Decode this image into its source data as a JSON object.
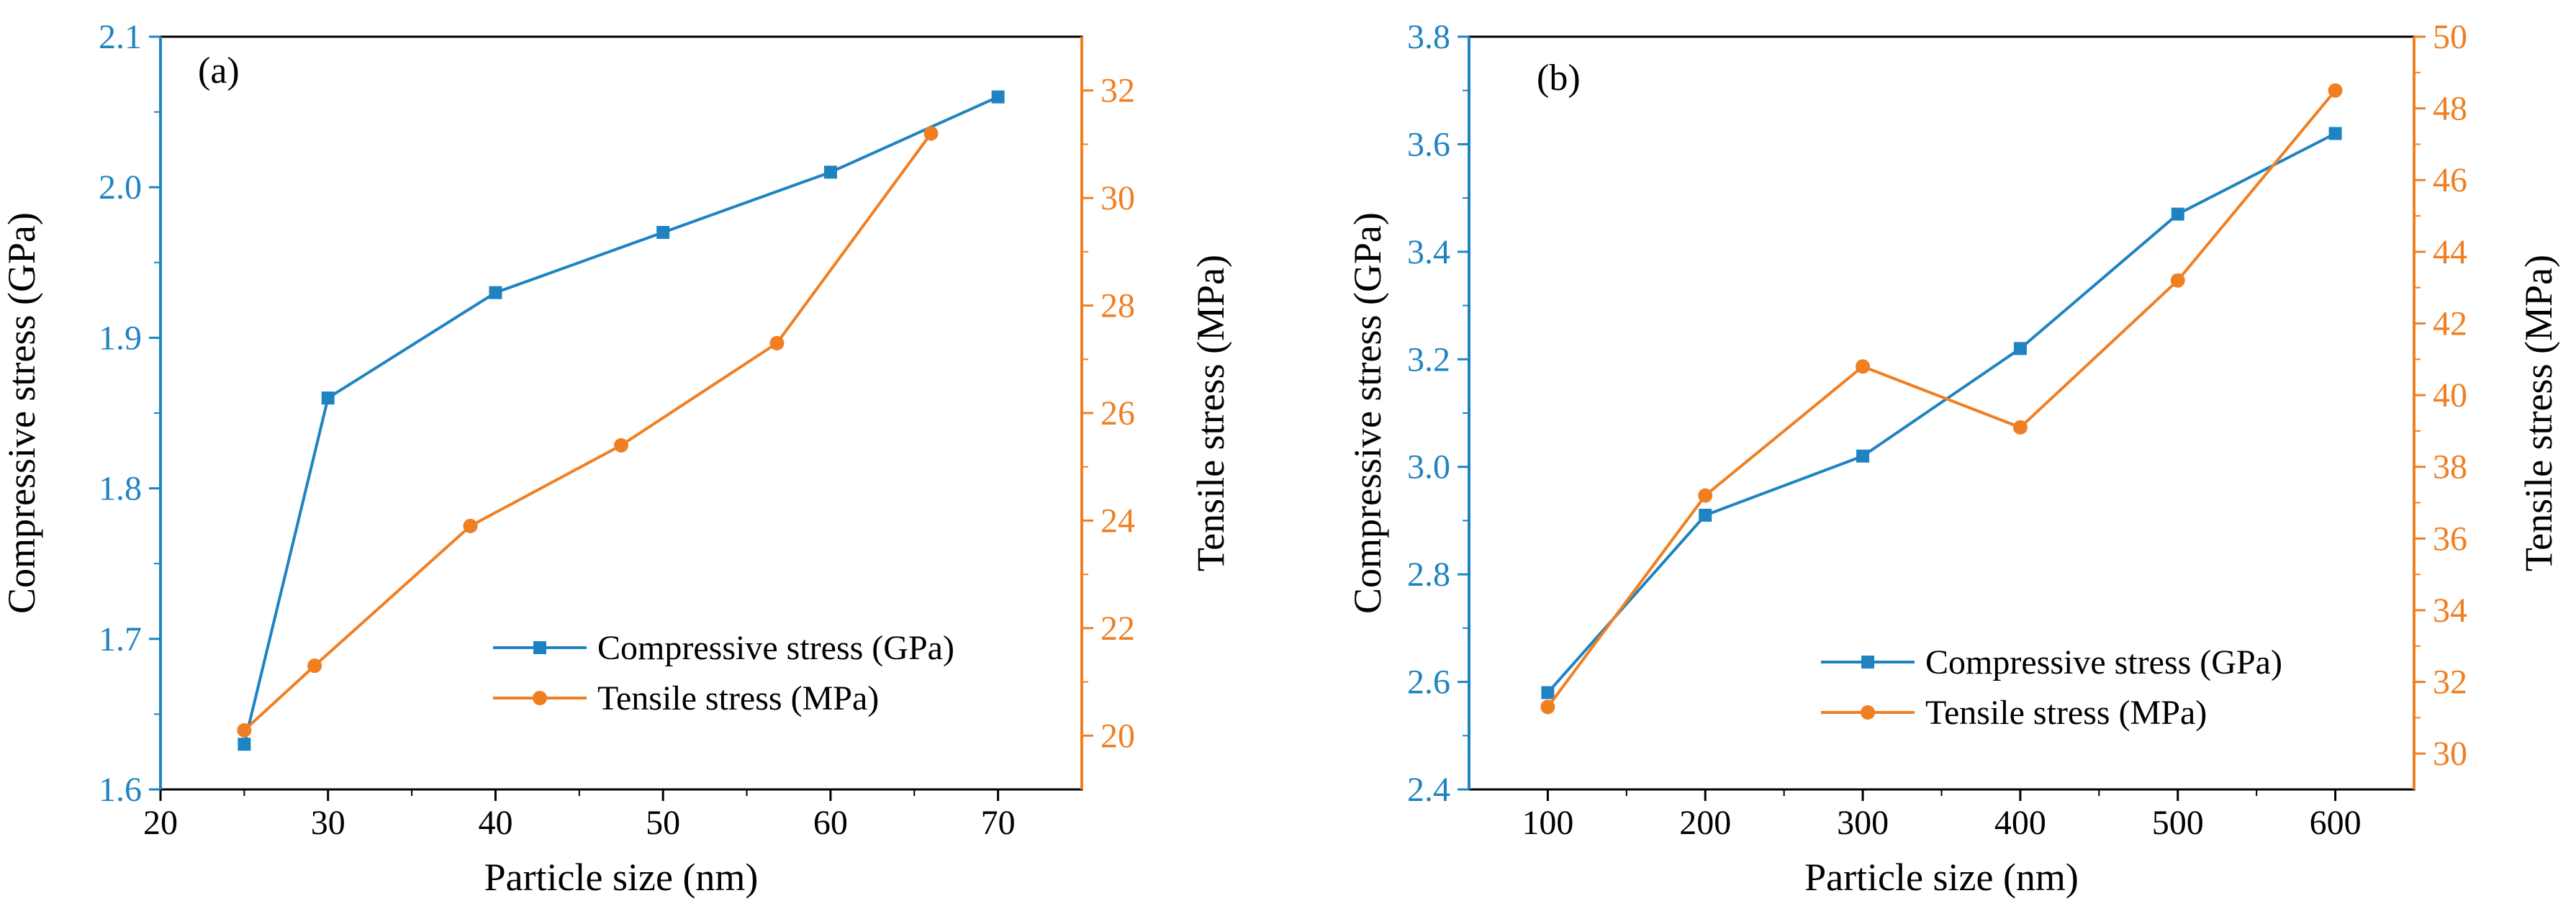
{
  "colors": {
    "compressive": "#1f83c2",
    "tensile": "#f07f22",
    "axis": "#000000"
  },
  "chart_data": [
    {
      "type": "line",
      "panel_label": "(a)",
      "xlabel": "Particle size (nm)",
      "ylabel_left": "Compressive stress (GPa)",
      "ylabel_right": "Tensile stress (MPa)",
      "xlim": [
        20,
        75
      ],
      "xticks": [
        20,
        30,
        40,
        50,
        60,
        70
      ],
      "xtick_labels": [
        "20",
        "30",
        "40",
        "50",
        "60",
        "70"
      ],
      "ylim_left": [
        1.6,
        2.1
      ],
      "yticks_left": [
        1.6,
        1.7,
        1.8,
        1.9,
        2.0,
        2.1
      ],
      "ytick_labels_left": [
        "1.6",
        "1.7",
        "1.8",
        "1.9",
        "2.0",
        "2.1"
      ],
      "ylim_right": [
        19,
        33
      ],
      "yticks_right": [
        20,
        22,
        24,
        26,
        28,
        30,
        32
      ],
      "ytick_labels_right": [
        "20",
        "22",
        "24",
        "26",
        "28",
        "30",
        "32"
      ],
      "legend_position": "bottom-right",
      "series": [
        {
          "name": "Compressive stress (GPa)",
          "axis": "left",
          "marker": "square",
          "x": [
            25,
            30,
            40,
            50,
            60,
            70
          ],
          "values": [
            1.63,
            1.86,
            1.93,
            1.97,
            2.01,
            2.06
          ]
        },
        {
          "name": "Tensile stress (MPa)",
          "axis": "right",
          "marker": "circle",
          "x": [
            25,
            29.2,
            38.5,
            47.5,
            56.8,
            66
          ],
          "values": [
            20.1,
            21.3,
            23.9,
            25.4,
            27.3,
            31.2
          ]
        }
      ]
    },
    {
      "type": "line",
      "panel_label": "(b)",
      "xlabel": "Particle size (nm)",
      "ylabel_left": "Compressive stress (GPa)",
      "ylabel_right": "Tensile stress (MPa)",
      "xlim": [
        50,
        650
      ],
      "xticks": [
        100,
        200,
        300,
        400,
        500,
        600
      ],
      "xtick_labels": [
        "100",
        "200",
        "300",
        "400",
        "500",
        "600"
      ],
      "ylim_left": [
        2.4,
        3.8
      ],
      "yticks_left": [
        2.4,
        2.6,
        2.8,
        3.0,
        3.2,
        3.4,
        3.6,
        3.8
      ],
      "ytick_labels_left": [
        "2.4",
        "2.6",
        "2.8",
        "3.0",
        "3.2",
        "3.4",
        "3.6",
        "3.8"
      ],
      "ylim_right": [
        29,
        50
      ],
      "yticks_right": [
        30,
        32,
        34,
        36,
        38,
        40,
        42,
        44,
        46,
        48,
        50
      ],
      "ytick_labels_right": [
        "30",
        "32",
        "34",
        "36",
        "38",
        "40",
        "42",
        "44",
        "46",
        "48",
        "50"
      ],
      "legend_position": "bottom-right",
      "series": [
        {
          "name": "Compressive stress (GPa)",
          "axis": "left",
          "marker": "square",
          "x": [
            100,
            200,
            300,
            400,
            500,
            600
          ],
          "values": [
            2.58,
            2.91,
            3.02,
            3.22,
            3.47,
            3.62
          ]
        },
        {
          "name": "Tensile stress (MPa)",
          "axis": "right",
          "marker": "circle",
          "x": [
            100,
            200,
            300,
            400,
            500,
            600
          ],
          "values": [
            31.3,
            37.2,
            40.8,
            39.1,
            43.2,
            48.5
          ]
        }
      ]
    }
  ]
}
